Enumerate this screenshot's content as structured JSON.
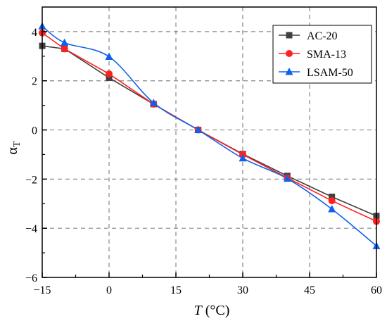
{
  "chart_data": {
    "type": "line",
    "xlabel": "T (°C)",
    "ylabel": "αT",
    "xlim": [
      -15,
      60
    ],
    "ylim": [
      -6,
      5
    ],
    "x_ticks": [
      -15,
      0,
      15,
      30,
      45,
      60
    ],
    "x_tick_labels": [
      "−15",
      "0",
      "15",
      "30",
      "45",
      "60"
    ],
    "y_ticks": [
      -6,
      -4,
      -2,
      0,
      2,
      4
    ],
    "y_tick_labels": [
      "−6",
      "−4",
      "−2",
      "0",
      "2",
      "4"
    ],
    "grid": true,
    "legend_position": "top-right",
    "series": [
      {
        "name": "AC-20",
        "color": "#404040",
        "marker": "square",
        "x": [
          -15,
          -10,
          0,
          10,
          20,
          30,
          40,
          50,
          60
        ],
        "y": [
          3.42,
          3.3,
          2.12,
          1.05,
          0.0,
          -0.98,
          -1.87,
          -2.72,
          -3.5
        ]
      },
      {
        "name": "SMA-13",
        "color": "#ff2020",
        "marker": "circle",
        "x": [
          -15,
          -10,
          0,
          10,
          20,
          30,
          40,
          50,
          60
        ],
        "y": [
          3.95,
          3.3,
          2.28,
          1.05,
          0.0,
          -1.0,
          -1.95,
          -2.88,
          -3.72
        ]
      },
      {
        "name": "LSAM-50",
        "color": "#1060ee",
        "marker": "triangle",
        "x": [
          -15,
          -10,
          0,
          10,
          20,
          30,
          40,
          50,
          60
        ],
        "y": [
          4.22,
          3.55,
          2.98,
          1.1,
          0.0,
          -1.15,
          -1.98,
          -3.22,
          -4.72
        ]
      }
    ]
  }
}
